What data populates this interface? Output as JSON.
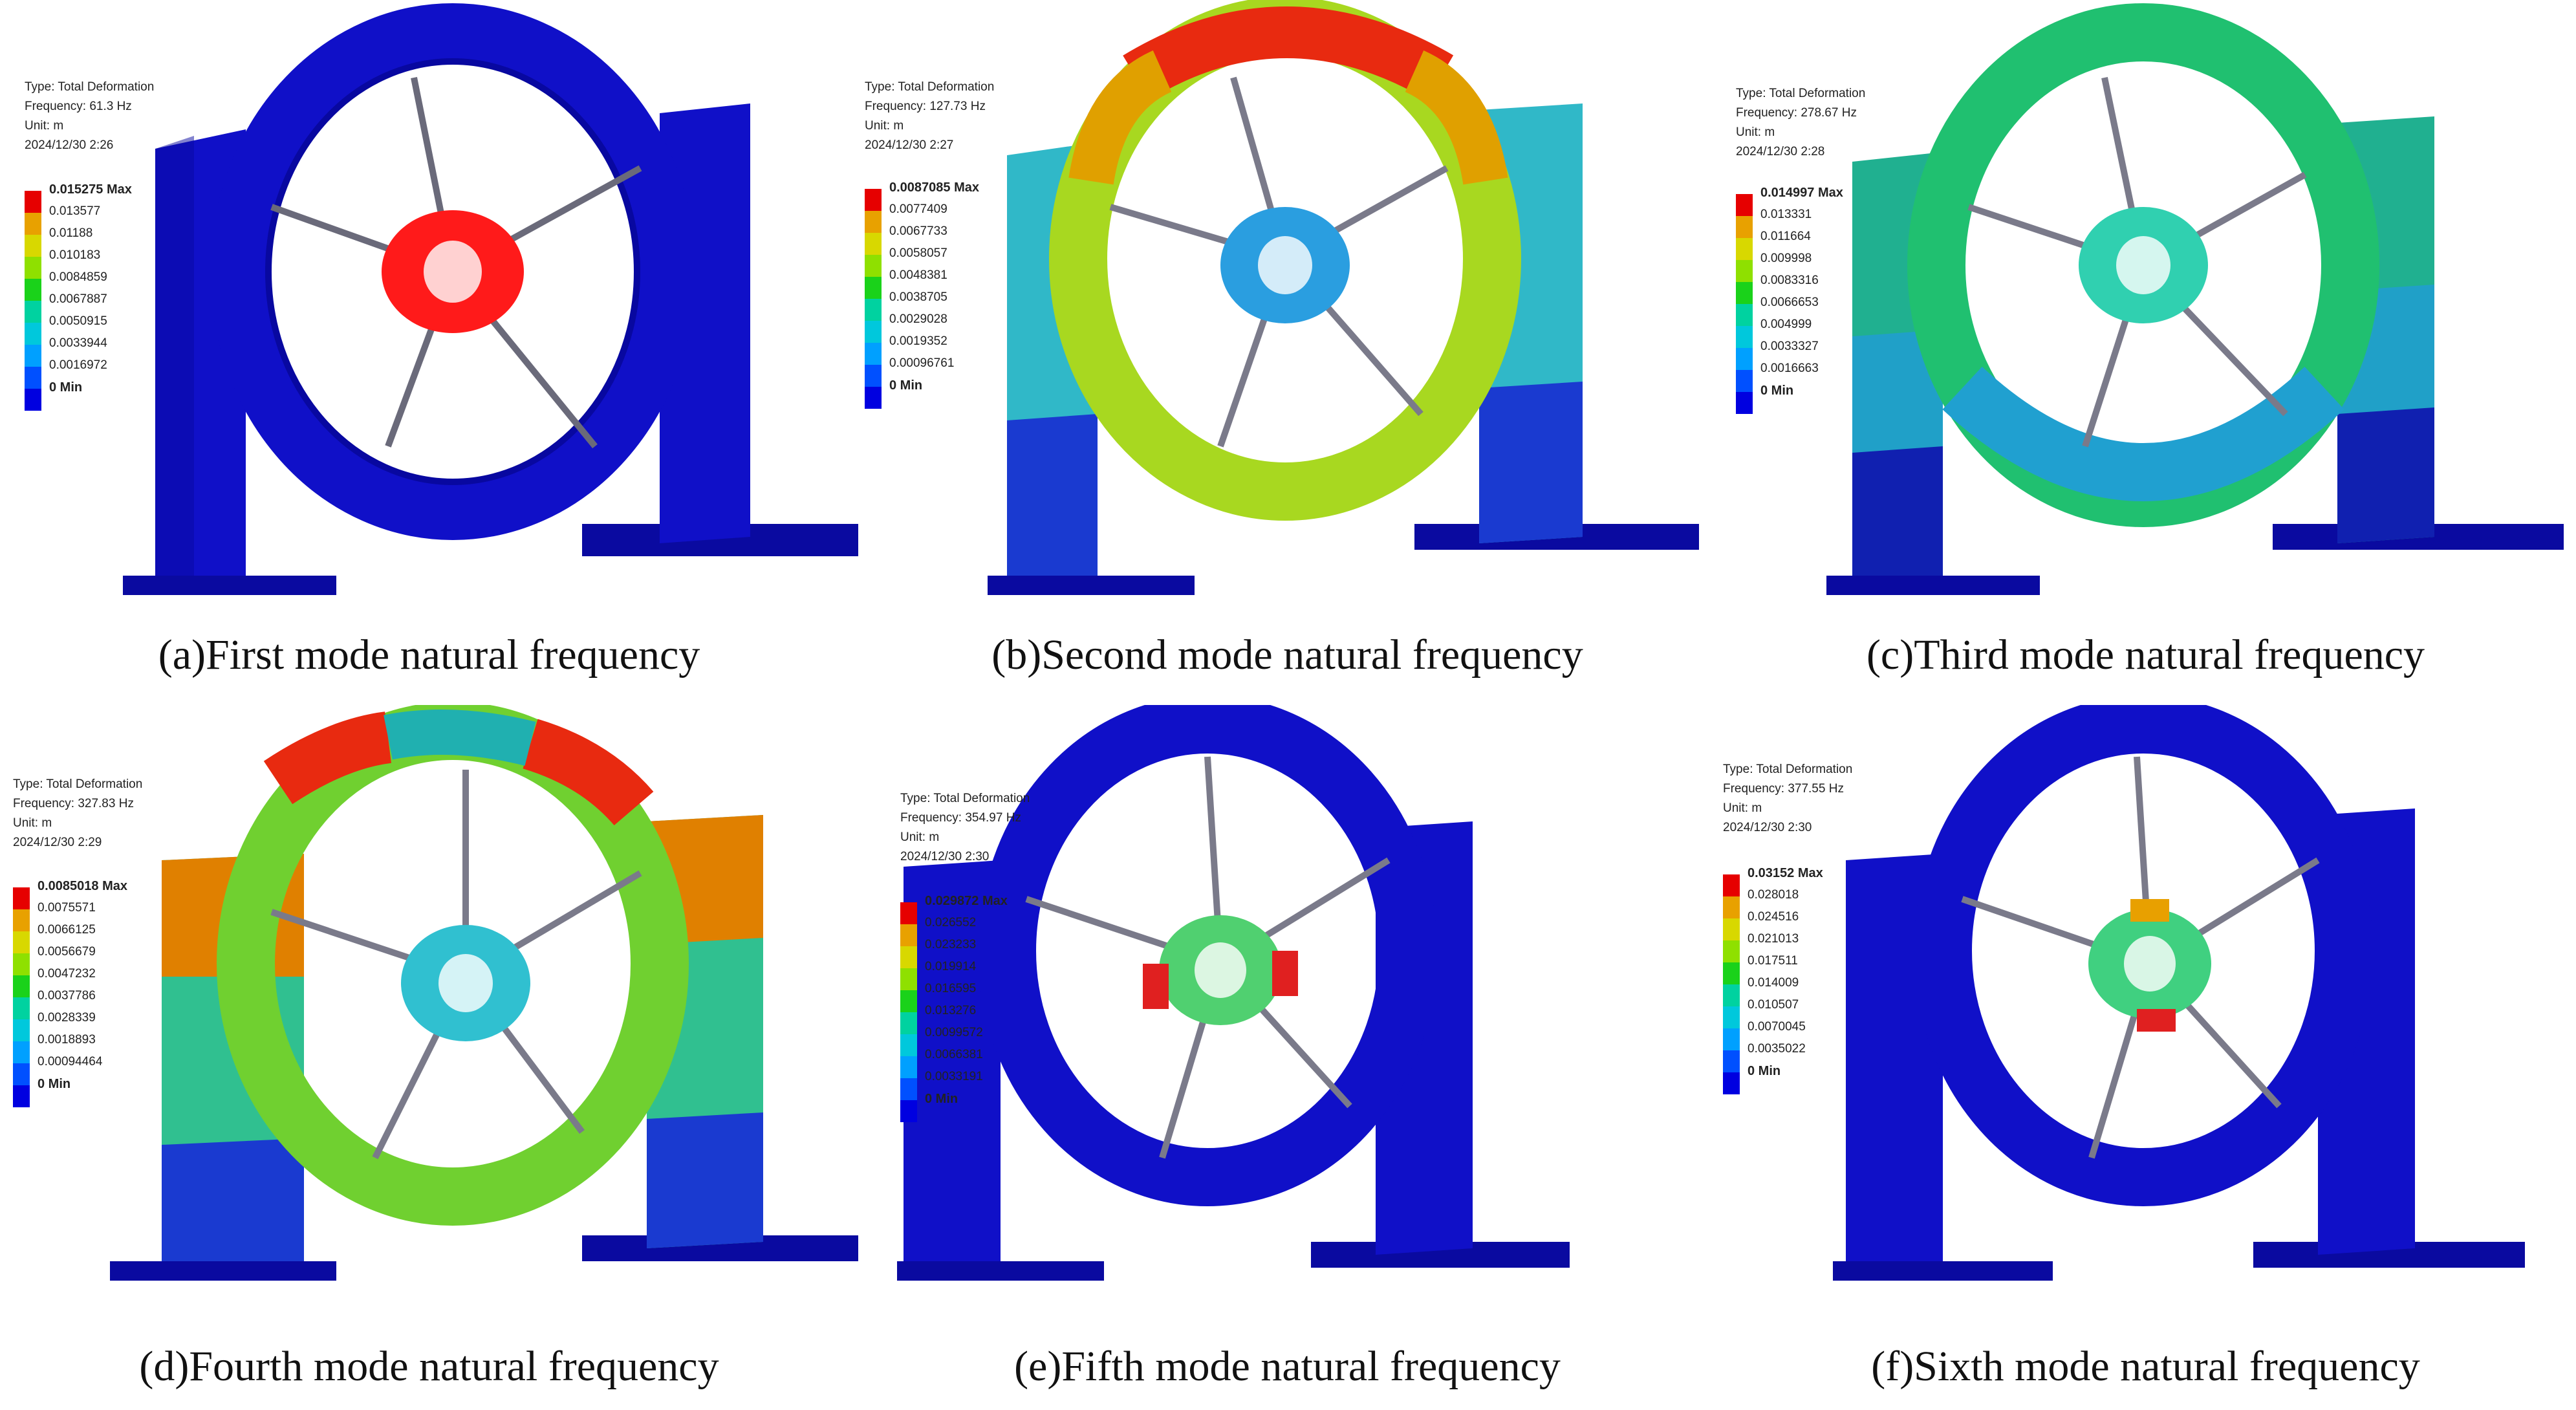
{
  "legend_colors": [
    "#e60000",
    "#e8a100",
    "#d8d800",
    "#8fe000",
    "#1ad21a",
    "#00d2a0",
    "#00c8dc",
    "#00a0ff",
    "#0050ff",
    "#0000e0"
  ],
  "panels": [
    {
      "caption": "(a)First mode natural frequency",
      "info": {
        "type": "Type: Total Deformation",
        "frequency": "Frequency: 61.3 Hz",
        "unit": "Unit: m",
        "date": "2024/12/30 2:26"
      },
      "legend": [
        "0.015275 Max",
        "0.013577",
        "0.01188",
        "0.010183",
        "0.0084859",
        "0.0067887",
        "0.0050915",
        "0.0033944",
        "0.0016972",
        "0 Min"
      ],
      "ring_color": "#1010c8",
      "stand_color": "#1010c8",
      "hub_color": "#ff1a1a"
    },
    {
      "caption": "(b)Second mode natural frequency",
      "info": {
        "type": "Type: Total Deformation",
        "frequency": "Frequency: 127.73 Hz",
        "unit": "Unit: m",
        "date": "2024/12/30 2:27"
      },
      "legend": [
        "0.0087085 Max",
        "0.0077409",
        "0.0067733",
        "0.0058057",
        "0.0048381",
        "0.0038705",
        "0.0029028",
        "0.0019352",
        "0.00096761",
        "0 Min"
      ],
      "ring_color": "#a8d820",
      "stand_color": "#30b8c8",
      "hub_color": "#2a9ee0"
    },
    {
      "caption": "(c)Third mode natural frequency",
      "info": {
        "type": "Type: Total Deformation",
        "frequency": "Frequency: 278.67 Hz",
        "unit": "Unit: m",
        "date": "2024/12/30 2:28"
      },
      "legend": [
        "0.014997 Max",
        "0.013331",
        "0.011664",
        "0.009998",
        "0.0083316",
        "0.0066653",
        "0.004999",
        "0.0033327",
        "0.0016663",
        "0 Min"
      ],
      "ring_color": "#20c070",
      "stand_color": "#20b090",
      "hub_color": "#30d0b0"
    },
    {
      "caption": "(d)Fourth mode natural frequency",
      "info": {
        "type": "Type: Total Deformation",
        "frequency": "Frequency: 327.83 Hz",
        "unit": "Unit: m",
        "date": "2024/12/30 2:29"
      },
      "legend": [
        "0.0085018 Max",
        "0.0075571",
        "0.0066125",
        "0.0056679",
        "0.0047232",
        "0.0037786",
        "0.0028339",
        "0.0018893",
        "0.00094464",
        "0 Min"
      ],
      "ring_color": "#70d030",
      "stand_color": "#30c090",
      "hub_color": "#30c0d0"
    },
    {
      "caption": "(e)Fifth mode natural frequency",
      "info": {
        "type": "Type: Total Deformation",
        "frequency": "Frequency: 354.97 Hz",
        "unit": "Unit: m",
        "date": "2024/12/30 2:30"
      },
      "legend": [
        "0.029872 Max",
        "0.026552",
        "0.023233",
        "0.019914",
        "0.016595",
        "0.013276",
        "0.0099572",
        "0.0066381",
        "0.0033191",
        "0 Min"
      ],
      "ring_color": "#1010c8",
      "stand_color": "#1010c8",
      "hub_color": "#50d070"
    },
    {
      "caption": "(f)Sixth mode natural frequency",
      "info": {
        "type": "Type: Total Deformation",
        "frequency": "Frequency: 377.55 Hz",
        "unit": "Unit: m",
        "date": "2024/12/30 2:30"
      },
      "legend": [
        "0.03152 Max",
        "0.028018",
        "0.024516",
        "0.021013",
        "0.017511",
        "0.014009",
        "0.010507",
        "0.0070045",
        "0.0035022",
        "0 Min"
      ],
      "ring_color": "#1010c8",
      "stand_color": "#1010c8",
      "hub_color": "#40d080"
    }
  ]
}
